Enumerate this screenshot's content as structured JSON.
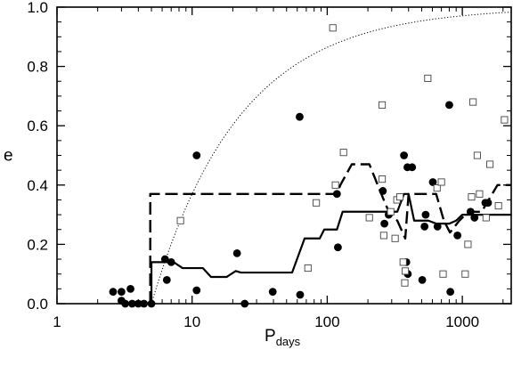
{
  "chart_data": {
    "type": "scatter",
    "x_scale": "log",
    "xlim": [
      1,
      2300
    ],
    "ylim": [
      0.0,
      1.0
    ],
    "xlabel": "P",
    "xlabel_sub": "days",
    "ylabel": "e",
    "x_ticks": [
      {
        "value": 1,
        "label": "1"
      },
      {
        "value": 10,
        "label": "10"
      },
      {
        "value": 100,
        "label": "100"
      },
      {
        "value": 1000,
        "label": "1000"
      }
    ],
    "y_ticks": [
      {
        "value": 0.0,
        "label": "0.0"
      },
      {
        "value": 0.2,
        "label": "0.2"
      },
      {
        "value": 0.4,
        "label": "0.4"
      },
      {
        "value": 0.6,
        "label": "0.6"
      },
      {
        "value": 0.8,
        "label": "0.8"
      },
      {
        "value": 1.0,
        "label": "1.0"
      }
    ],
    "grid": false,
    "legend": "none",
    "series": [
      {
        "marker": "filled-circle",
        "color": "#000000",
        "points": [
          [
            2.6,
            0.04
          ],
          [
            3.0,
            0.04
          ],
          [
            3.0,
            0.01
          ],
          [
            3.2,
            0.0
          ],
          [
            3.5,
            0.05
          ],
          [
            3.6,
            0.0
          ],
          [
            4.0,
            0.0
          ],
          [
            4.4,
            0.0
          ],
          [
            5.0,
            0.0
          ],
          [
            6.3,
            0.15
          ],
          [
            6.5,
            0.08
          ],
          [
            7.0,
            0.14
          ],
          [
            10.8,
            0.5
          ],
          [
            10.8,
            0.045
          ],
          [
            21.5,
            0.17
          ],
          [
            24.5,
            0.0
          ],
          [
            39.5,
            0.04
          ],
          [
            62.5,
            0.63
          ],
          [
            63.0,
            0.03
          ],
          [
            118,
            0.37
          ],
          [
            120,
            0.19
          ],
          [
            258,
            0.38
          ],
          [
            265,
            0.27
          ],
          [
            285,
            0.3
          ],
          [
            370,
            0.5
          ],
          [
            385,
            0.14
          ],
          [
            392,
            0.46
          ],
          [
            395,
            0.1
          ],
          [
            425,
            0.46
          ],
          [
            505,
            0.08
          ],
          [
            525,
            0.26
          ],
          [
            535,
            0.3
          ],
          [
            605,
            0.41
          ],
          [
            655,
            0.26
          ],
          [
            800,
            0.67
          ],
          [
            815,
            0.04
          ],
          [
            920,
            0.23
          ],
          [
            1150,
            0.31
          ],
          [
            1230,
            0.29
          ],
          [
            1480,
            0.34
          ],
          [
            1550,
            0.34
          ]
        ]
      },
      {
        "marker": "open-square",
        "color": "#444444",
        "points": [
          [
            8.2,
            0.28
          ],
          [
            72,
            0.12
          ],
          [
            83,
            0.34
          ],
          [
            110,
            0.93
          ],
          [
            115,
            0.4
          ],
          [
            132,
            0.51
          ],
          [
            205,
            0.29
          ],
          [
            255,
            0.42
          ],
          [
            255,
            0.67
          ],
          [
            262,
            0.23
          ],
          [
            295,
            0.31
          ],
          [
            318,
            0.22
          ],
          [
            328,
            0.35
          ],
          [
            345,
            0.36
          ],
          [
            365,
            0.14
          ],
          [
            375,
            0.07
          ],
          [
            378,
            0.11
          ],
          [
            555,
            0.76
          ],
          [
            650,
            0.39
          ],
          [
            700,
            0.41
          ],
          [
            720,
            0.1
          ],
          [
            1050,
            0.1
          ],
          [
            1100,
            0.2
          ],
          [
            1170,
            0.36
          ],
          [
            1200,
            0.68
          ],
          [
            1290,
            0.5
          ],
          [
            1340,
            0.37
          ],
          [
            1500,
            0.29
          ],
          [
            1600,
            0.47
          ],
          [
            1850,
            0.33
          ],
          [
            2050,
            0.62
          ]
        ]
      },
      {
        "type": "line",
        "style": "solid",
        "color": "#000000",
        "points": [
          [
            5.0,
            0.0
          ],
          [
            5.0,
            0.14
          ],
          [
            7.3,
            0.14
          ],
          [
            8.5,
            0.12
          ],
          [
            12.0,
            0.12
          ],
          [
            13.8,
            0.09
          ],
          [
            18.0,
            0.09
          ],
          [
            21.0,
            0.11
          ],
          [
            23.0,
            0.105
          ],
          [
            55.0,
            0.105
          ],
          [
            68.0,
            0.22
          ],
          [
            88.0,
            0.22
          ],
          [
            95.0,
            0.25
          ],
          [
            118.0,
            0.25
          ],
          [
            130.0,
            0.31
          ],
          [
            330.0,
            0.31
          ],
          [
            370.0,
            0.37
          ],
          [
            400.0,
            0.37
          ],
          [
            440.0,
            0.28
          ],
          [
            560.0,
            0.28
          ],
          [
            640.0,
            0.27
          ],
          [
            800.0,
            0.27
          ],
          [
            900.0,
            0.28
          ],
          [
            1000.0,
            0.3
          ],
          [
            2300.0,
            0.3
          ]
        ]
      },
      {
        "type": "line",
        "style": "dashed",
        "color": "#000000",
        "points": [
          [
            4.9,
            0.0
          ],
          [
            4.9,
            0.37
          ],
          [
            118.0,
            0.37
          ],
          [
            125.0,
            0.4
          ],
          [
            152.0,
            0.47
          ],
          [
            205.0,
            0.47
          ],
          [
            262.0,
            0.35
          ],
          [
            292.0,
            0.3
          ],
          [
            330.0,
            0.28
          ],
          [
            378.0,
            0.22
          ],
          [
            400.0,
            0.37
          ],
          [
            640.0,
            0.37
          ],
          [
            730.0,
            0.28
          ],
          [
            810.0,
            0.24
          ],
          [
            950.0,
            0.28
          ],
          [
            1050.0,
            0.3
          ],
          [
            1230.0,
            0.31
          ],
          [
            1390.0,
            0.31
          ],
          [
            1820.0,
            0.4
          ],
          [
            2300.0,
            0.4
          ]
        ]
      },
      {
        "type": "line",
        "style": "dotted",
        "color": "#000000",
        "function": "e = 1 - (P/5)^(-2/3)",
        "x_start": 5.0,
        "x_end": 2300.0
      },
      {
        "type": "line",
        "style": "dashed-thin",
        "color": "#000000",
        "points": [
          [
            1.0,
            0.0
          ],
          [
            2300.0,
            0.0
          ]
        ]
      }
    ]
  }
}
